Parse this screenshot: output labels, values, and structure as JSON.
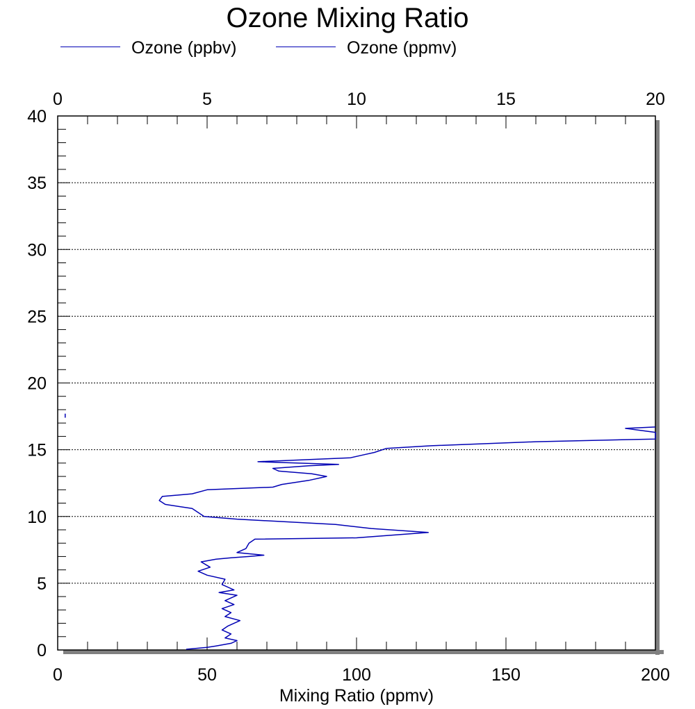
{
  "chart_data": {
    "type": "line",
    "title": "Ozone Mixing Ratio",
    "xlabel": "Mixing Ratio (ppmv)",
    "ylabel": "",
    "legend_position": "top-left",
    "grid": "horizontal dotted at major y ticks",
    "colors": {
      "series": "#0000b4",
      "shadow": "#808080"
    },
    "x_bottom": {
      "range": [
        0,
        200
      ],
      "ticks": [
        "0",
        "50",
        "100",
        "150",
        "200"
      ],
      "tick_values": [
        0,
        50,
        100,
        150,
        200
      ]
    },
    "x_top": {
      "range": [
        0,
        20
      ],
      "ticks": [
        "0",
        "5",
        "10",
        "15",
        "20"
      ],
      "tick_values": [
        0,
        5,
        10,
        15,
        20
      ]
    },
    "y_left": {
      "range": [
        0,
        40
      ],
      "ticks": [
        "0",
        "5",
        "10",
        "15",
        "20",
        "25",
        "30",
        "35",
        "40"
      ],
      "tick_values": [
        0,
        5,
        10,
        15,
        20,
        25,
        30,
        35,
        40
      ]
    },
    "series": [
      {
        "name": "Ozone (ppbv)",
        "axis": "bottom",
        "points": [
          [
            43,
            0.05
          ],
          [
            50,
            0.2
          ],
          [
            53,
            0.3
          ],
          [
            58,
            0.5
          ],
          [
            60,
            0.7
          ],
          [
            56,
            0.9
          ],
          [
            58,
            1.2
          ],
          [
            55,
            1.5
          ],
          [
            57,
            1.8
          ],
          [
            61,
            2.2
          ],
          [
            56,
            2.5
          ],
          [
            58,
            2.8
          ],
          [
            55,
            3.1
          ],
          [
            59,
            3.4
          ],
          [
            56,
            3.7
          ],
          [
            60,
            4.1
          ],
          [
            54,
            4.3
          ],
          [
            59,
            4.5
          ],
          [
            55,
            4.9
          ],
          [
            56,
            5.3
          ],
          [
            50,
            5.6
          ],
          [
            47,
            5.9
          ],
          [
            51,
            6.2
          ],
          [
            48,
            6.6
          ],
          [
            53,
            6.8
          ],
          [
            58,
            6.9
          ],
          [
            64,
            7.0
          ],
          [
            69,
            7.1
          ],
          [
            60,
            7.3
          ],
          [
            63,
            7.6
          ],
          [
            64,
            8.0
          ],
          [
            66,
            8.3
          ],
          [
            100,
            8.4
          ],
          [
            124,
            8.8
          ],
          [
            105,
            9.1
          ],
          [
            93,
            9.4
          ],
          [
            60,
            9.8
          ],
          [
            49,
            10.0
          ],
          [
            47,
            10.3
          ],
          [
            45,
            10.6
          ],
          [
            36,
            10.9
          ],
          [
            34,
            11.2
          ],
          [
            35,
            11.5
          ],
          [
            45,
            11.7
          ],
          [
            50,
            12.0
          ],
          [
            72,
            12.2
          ],
          [
            75,
            12.4
          ],
          [
            84,
            12.7
          ],
          [
            90,
            13.0
          ],
          [
            85,
            13.2
          ],
          [
            74,
            13.4
          ],
          [
            72,
            13.6
          ],
          [
            84,
            13.8
          ],
          [
            94,
            13.9
          ],
          [
            67,
            14.1
          ],
          [
            98,
            14.4
          ],
          [
            102,
            14.6
          ],
          [
            106,
            14.8
          ],
          [
            110,
            15.1
          ],
          [
            125,
            15.3
          ],
          [
            160,
            15.6
          ],
          [
            200,
            15.8
          ],
          [
            200,
            16.3
          ],
          [
            190,
            16.6
          ],
          [
            200,
            16.7
          ]
        ]
      },
      {
        "name": "Ozone (ppmv)",
        "axis": "top",
        "points": [
          [
            0.25,
            17.4
          ],
          [
            0.25,
            17.7
          ]
        ]
      }
    ]
  }
}
